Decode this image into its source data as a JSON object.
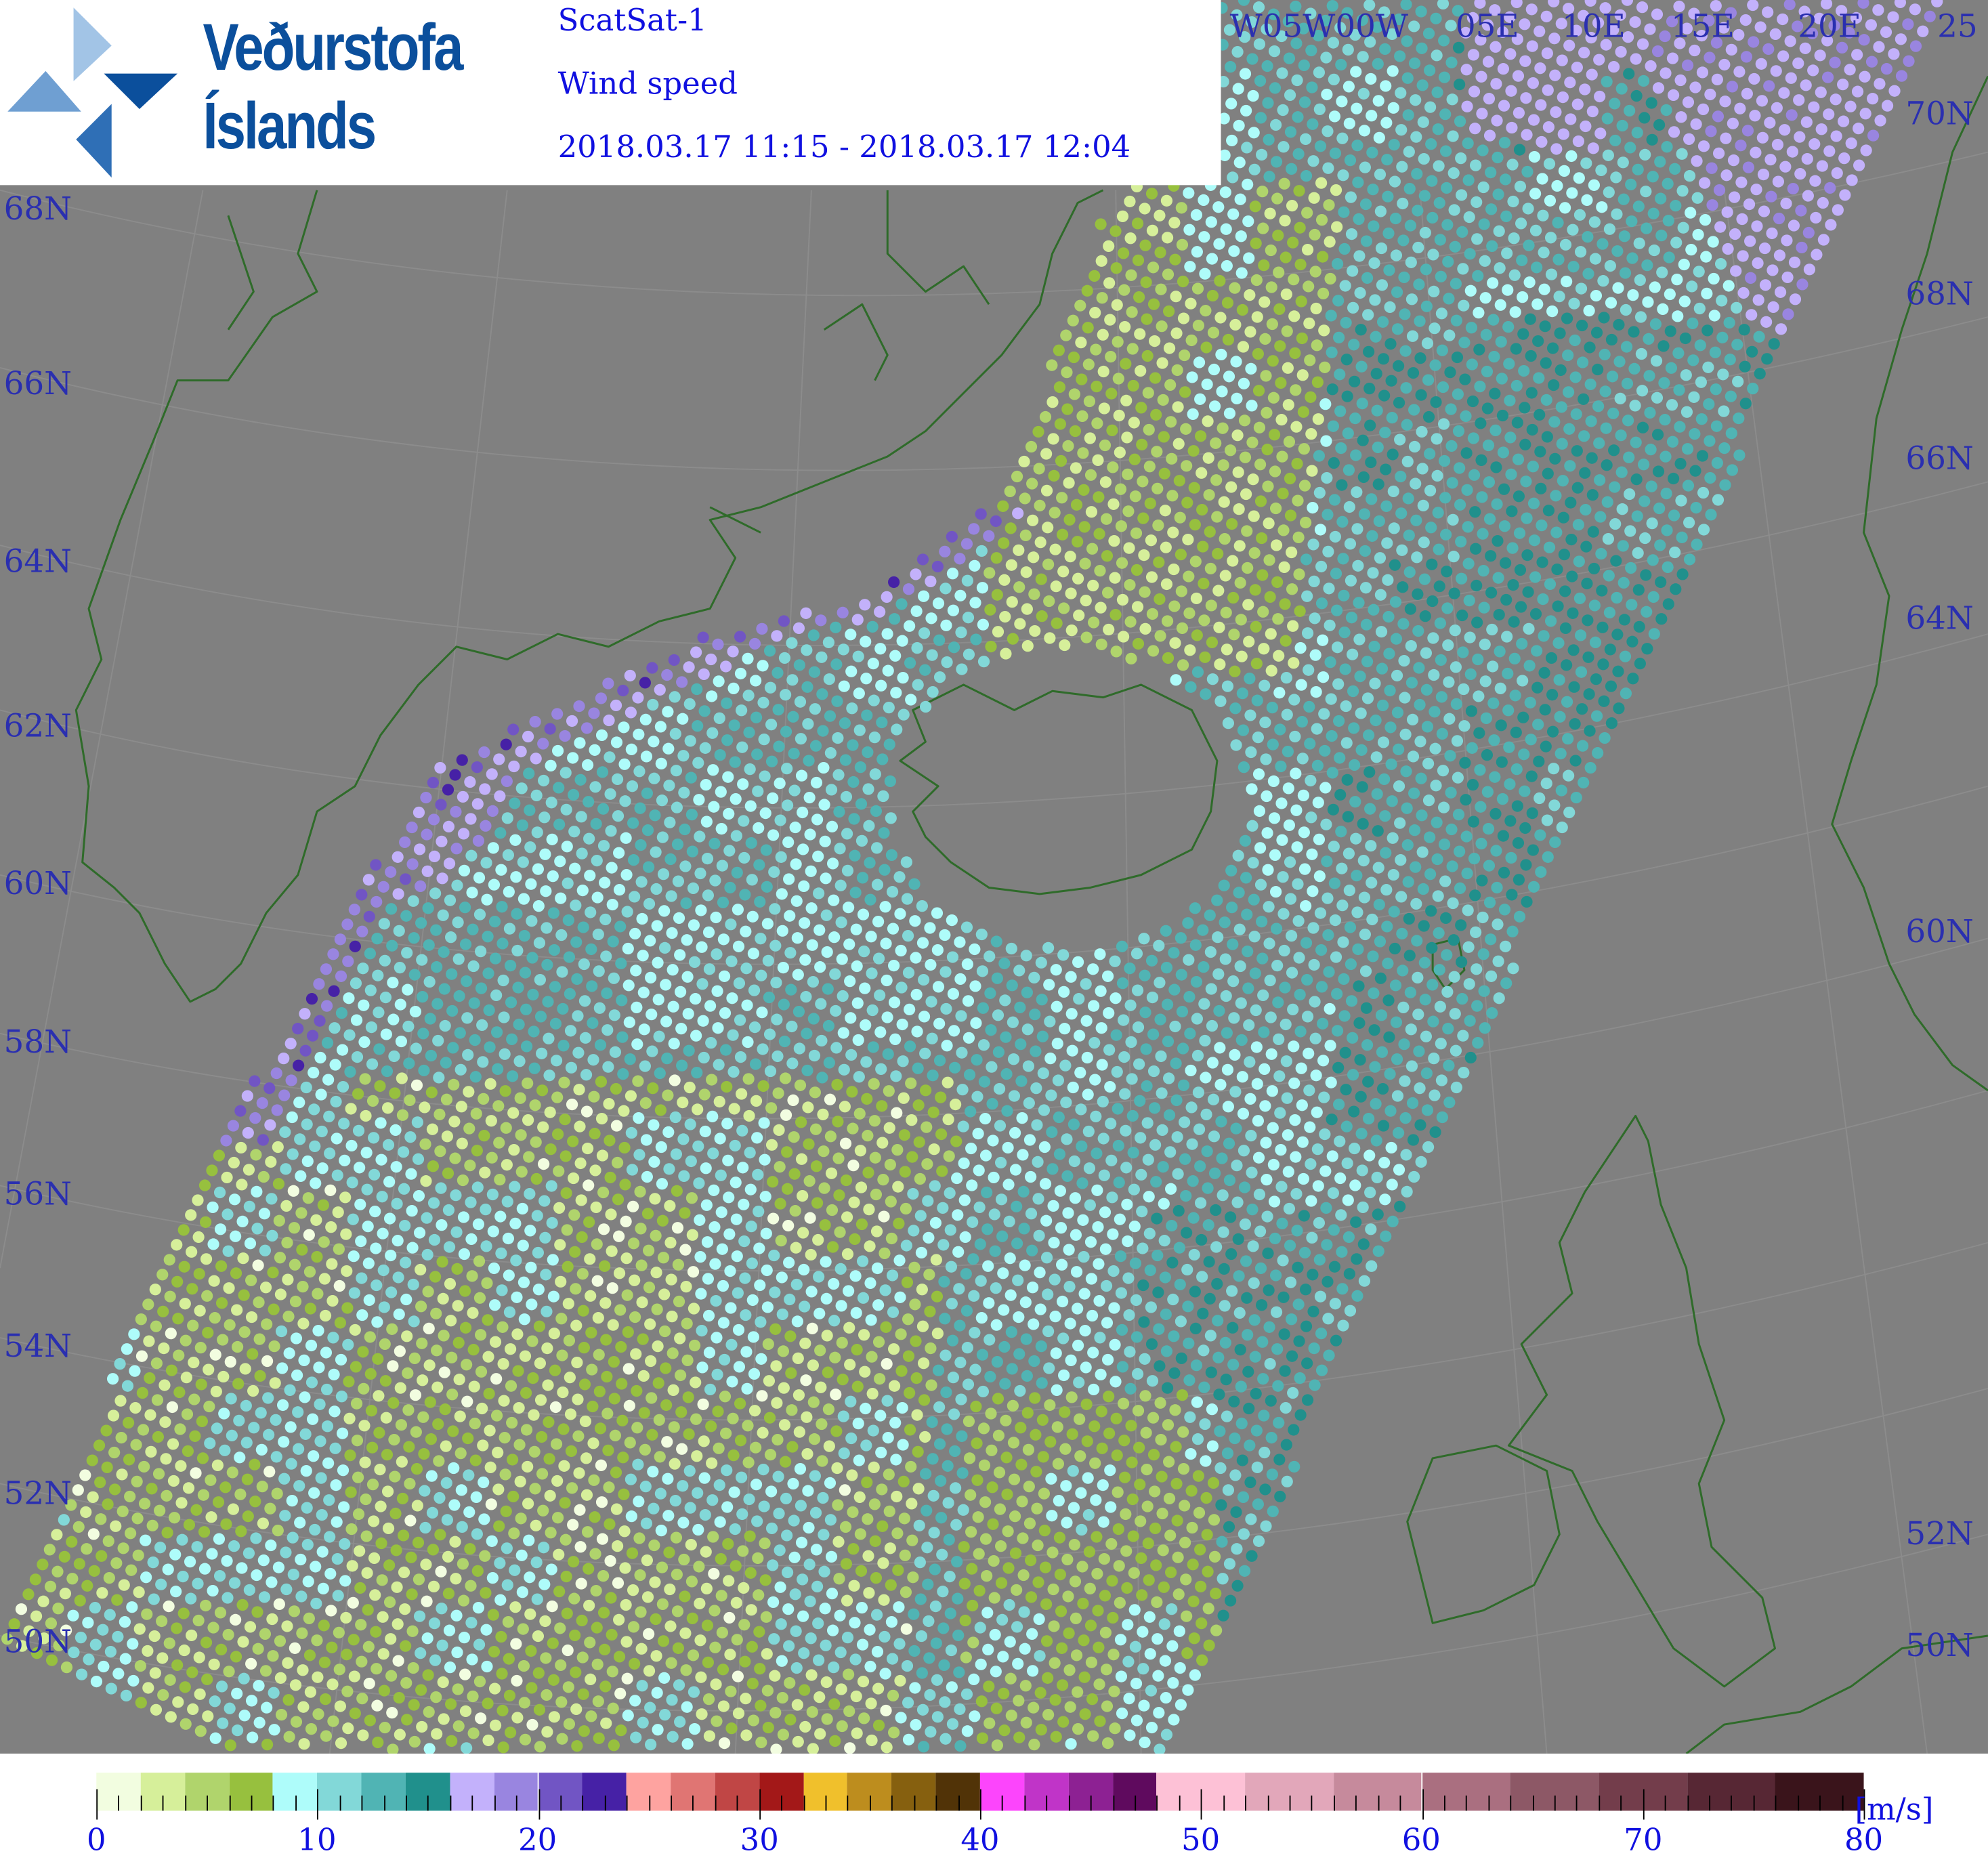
{
  "header": {
    "logo_line1": "Veðurstofa",
    "logo_line2": "Íslands",
    "satellite": "ScatSat-1",
    "parameter": "Wind speed",
    "time_range": "2018.03.17 11:15 - 2018.03.17 12:04"
  },
  "map": {
    "background_color": "#808080",
    "coastline_color": "#2f6b2a",
    "label_color": "#2a2fb0",
    "lat_labels_left": [
      "68N",
      "66N",
      "64N",
      "62N",
      "60N",
      "58N",
      "56N",
      "54N",
      "52N",
      "50N"
    ],
    "lat_labels_right": [
      "70N",
      "68N",
      "66N",
      "64N",
      "60N",
      "52N",
      "50N"
    ],
    "lon_labels_top": [
      "W05W00W",
      "05E",
      "10E",
      "15E",
      "20E",
      "25"
    ]
  },
  "colorbar": {
    "unit": "[m/s]",
    "tick_labels": [
      "0",
      "10",
      "20",
      "30",
      "40",
      "50",
      "60",
      "70",
      "80"
    ],
    "bounds": [
      0,
      2,
      4,
      6,
      8,
      10,
      12,
      14,
      16,
      18,
      20,
      22,
      24,
      26,
      28,
      30,
      32,
      34,
      36,
      38,
      40,
      42,
      44,
      46,
      48,
      52,
      56,
      60,
      64,
      68,
      72,
      76,
      80
    ],
    "colors": [
      "#f2fde0",
      "#d6ef9a",
      "#b0d46c",
      "#97c03e",
      "#aefcfa",
      "#82d8d8",
      "#50b4b4",
      "#20908c",
      "#c3b1fb",
      "#9985e0",
      "#7155c4",
      "#4621a6",
      "#fea3a0",
      "#e07573",
      "#c04645",
      "#a31818",
      "#f0c02c",
      "#bd8d1e",
      "#86600f",
      "#513307",
      "#fc45fc",
      "#c034c8",
      "#8d2193",
      "#5f0a5e",
      "#fdc1d6",
      "#e2a7ba",
      "#c68a9c",
      "#aa6f80",
      "#8d5866",
      "#733d4b",
      "#572734",
      "#3a141b"
    ]
  }
}
